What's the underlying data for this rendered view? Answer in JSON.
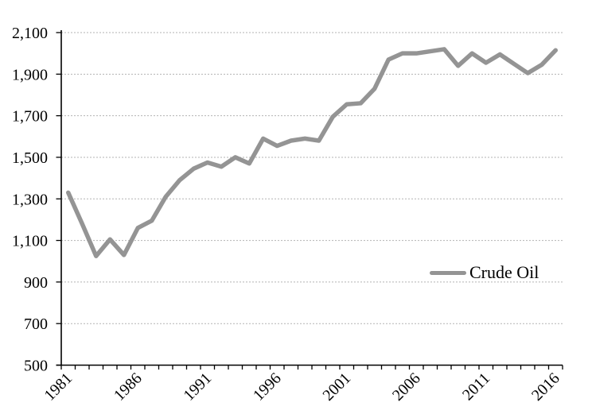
{
  "chart_data": {
    "type": "line",
    "title": "",
    "xlabel": "",
    "ylabel": "",
    "x": [
      1981,
      1982,
      1983,
      1984,
      1985,
      1986,
      1987,
      1988,
      1989,
      1990,
      1991,
      1992,
      1993,
      1994,
      1995,
      1996,
      1997,
      1998,
      1999,
      2000,
      2001,
      2002,
      2003,
      2004,
      2005,
      2006,
      2007,
      2008,
      2009,
      2010,
      2011,
      2012,
      2013,
      2014,
      2015,
      2016
    ],
    "series": [
      {
        "name": "Crude Oil",
        "values": [
          1330,
          1180,
          1025,
          1105,
          1030,
          1160,
          1195,
          1310,
          1390,
          1445,
          1475,
          1455,
          1500,
          1470,
          1590,
          1555,
          1580,
          1590,
          1580,
          1695,
          1755,
          1760,
          1830,
          1970,
          2000,
          2000,
          2010,
          2020,
          1940,
          2000,
          1955,
          1995,
          1950,
          1905,
          1945,
          2015
        ]
      }
    ],
    "x_axis": {
      "labeled_ticks": [
        "1981",
        "1986",
        "1991",
        "1996",
        "2001",
        "2006",
        "2011",
        "2016"
      ],
      "label_rotation_deg": -45,
      "minor_tick_every_year": true
    },
    "y_axis": {
      "min": 500,
      "max": 2100,
      "step": 200,
      "tick_labels": [
        "500",
        "700",
        "900",
        "1,100",
        "1,300",
        "1,500",
        "1,700",
        "1,900",
        "2,100"
      ]
    },
    "legend": {
      "label": "Crude Oil",
      "position": "inside-middle-right"
    },
    "grid": {
      "horizontal": true,
      "style": "dotted",
      "color": "#b3b3b3"
    },
    "colors": {
      "line": "#949494",
      "axis": "#000000",
      "text": "#000000",
      "background": "#ffffff"
    }
  }
}
